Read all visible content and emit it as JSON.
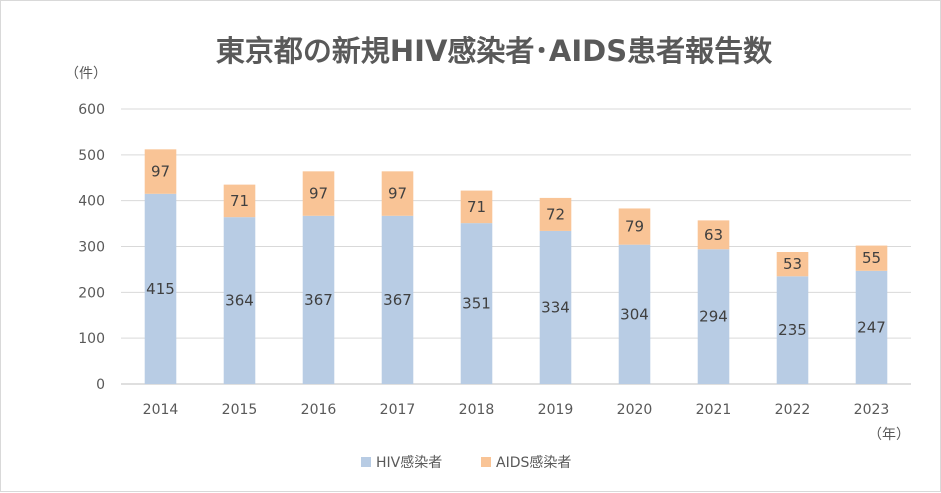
{
  "chart_data": {
    "type": "bar",
    "stacked": true,
    "title": "東京都の新規HIV感染者･AIDS患者報告数",
    "ylabel": "（件）",
    "xlabel": "（年）",
    "ylim": [
      0,
      600
    ],
    "yticks": [
      0,
      100,
      200,
      300,
      400,
      500,
      600
    ],
    "grid": true,
    "legend_position": "bottom",
    "categories": [
      "2014",
      "2015",
      "2016",
      "2017",
      "2018",
      "2019",
      "2020",
      "2021",
      "2022",
      "2023"
    ],
    "series": [
      {
        "name": "HIV感染者",
        "color": "#b8cce4",
        "values": [
          415,
          364,
          367,
          367,
          351,
          334,
          304,
          294,
          235,
          247
        ]
      },
      {
        "name": "AIDS感染者",
        "color": "#f9c496",
        "values": [
          97,
          71,
          97,
          97,
          71,
          72,
          79,
          63,
          53,
          55
        ]
      }
    ]
  }
}
